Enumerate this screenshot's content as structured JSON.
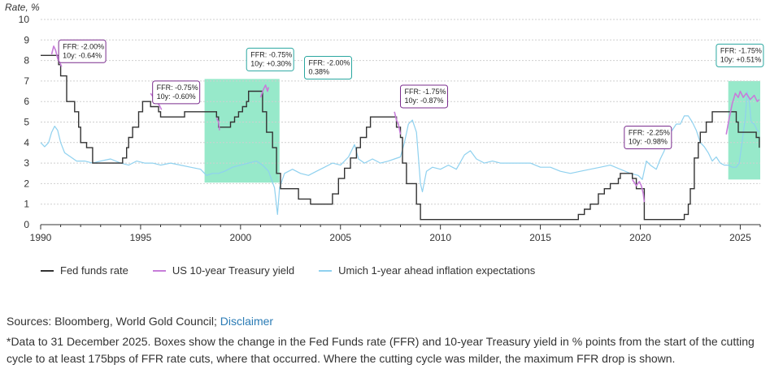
{
  "chart_data": {
    "type": "line",
    "ylabel": "Rate, %",
    "xlim": [
      1990,
      2026
    ],
    "ylim": [
      0,
      10
    ],
    "x_ticks": [
      1990,
      1995,
      2000,
      2005,
      2010,
      2015,
      2020,
      2025
    ],
    "x_tick_labels": [
      "1990",
      "1995",
      "2000",
      "2005",
      "2010",
      "2015",
      "2020",
      "2025"
    ],
    "y_ticks": [
      0,
      1,
      2,
      3,
      4,
      5,
      6,
      7,
      8,
      9,
      10
    ],
    "y_tick_labels": [
      "0",
      "1",
      "2",
      "3",
      "4",
      "5",
      "6",
      "7",
      "8",
      "9",
      "10"
    ],
    "grid": "horizontal dotted",
    "legend_position": "bottom",
    "series": [
      {
        "name": "Fed funds rate",
        "color": "#333333",
        "points": [
          [
            1990.0,
            8.25
          ],
          [
            1990.6,
            8.25
          ],
          [
            1990.9,
            7.8
          ],
          [
            1991.0,
            7.25
          ],
          [
            1991.3,
            6.0
          ],
          [
            1991.7,
            5.5
          ],
          [
            1991.9,
            4.75
          ],
          [
            1992.0,
            4.0
          ],
          [
            1992.3,
            3.75
          ],
          [
            1992.6,
            3.0
          ],
          [
            1993.0,
            3.0
          ],
          [
            1994.0,
            3.0
          ],
          [
            1994.1,
            3.25
          ],
          [
            1994.3,
            3.75
          ],
          [
            1994.4,
            4.25
          ],
          [
            1994.6,
            4.75
          ],
          [
            1994.9,
            5.5
          ],
          [
            1995.1,
            6.0
          ],
          [
            1995.5,
            5.75
          ],
          [
            1995.9,
            5.5
          ],
          [
            1996.0,
            5.25
          ],
          [
            1997.2,
            5.5
          ],
          [
            1998.7,
            5.5
          ],
          [
            1998.8,
            5.25
          ],
          [
            1998.9,
            4.75
          ],
          [
            1999.5,
            5.0
          ],
          [
            1999.7,
            5.25
          ],
          [
            1999.9,
            5.5
          ],
          [
            2000.1,
            5.75
          ],
          [
            2000.3,
            6.0
          ],
          [
            2000.4,
            6.5
          ],
          [
            2001.0,
            6.5
          ],
          [
            2001.1,
            5.5
          ],
          [
            2001.3,
            4.5
          ],
          [
            2001.6,
            3.75
          ],
          [
            2001.8,
            2.5
          ],
          [
            2002.0,
            1.75
          ],
          [
            2002.9,
            1.25
          ],
          [
            2003.5,
            1.0
          ],
          [
            2004.4,
            1.0
          ],
          [
            2004.6,
            1.5
          ],
          [
            2004.9,
            2.25
          ],
          [
            2005.2,
            2.75
          ],
          [
            2005.5,
            3.25
          ],
          [
            2005.8,
            3.75
          ],
          [
            2006.0,
            4.25
          ],
          [
            2006.3,
            4.75
          ],
          [
            2006.5,
            5.25
          ],
          [
            2007.6,
            5.25
          ],
          [
            2007.8,
            4.75
          ],
          [
            2008.0,
            4.25
          ],
          [
            2008.1,
            3.0
          ],
          [
            2008.3,
            2.0
          ],
          [
            2008.8,
            1.0
          ],
          [
            2009.0,
            0.25
          ],
          [
            2015.9,
            0.25
          ],
          [
            2016.9,
            0.5
          ],
          [
            2017.2,
            0.75
          ],
          [
            2017.5,
            1.0
          ],
          [
            2017.9,
            1.5
          ],
          [
            2018.2,
            1.75
          ],
          [
            2018.5,
            2.0
          ],
          [
            2018.9,
            2.25
          ],
          [
            2019.0,
            2.5
          ],
          [
            2019.5,
            2.5
          ],
          [
            2019.6,
            2.25
          ],
          [
            2019.8,
            1.75
          ],
          [
            2020.1,
            1.75
          ],
          [
            2020.2,
            0.25
          ],
          [
            2022.0,
            0.25
          ],
          [
            2022.2,
            0.5
          ],
          [
            2022.4,
            1.0
          ],
          [
            2022.5,
            1.75
          ],
          [
            2022.7,
            3.25
          ],
          [
            2022.9,
            4.0
          ],
          [
            2023.0,
            4.5
          ],
          [
            2023.3,
            5.0
          ],
          [
            2023.6,
            5.5
          ],
          [
            2024.7,
            5.5
          ],
          [
            2024.8,
            5.0
          ],
          [
            2024.9,
            4.5
          ],
          [
            2025.7,
            4.5
          ],
          [
            2025.8,
            4.25
          ],
          [
            2025.95,
            3.75
          ]
        ]
      },
      {
        "name": "US 10-year Treasury yield",
        "color": "#c77dd9",
        "segments": [
          [
            [
              1990.55,
              8.3
            ],
            [
              1990.65,
              8.7
            ],
            [
              1990.75,
              8.5
            ],
            [
              1990.85,
              8.1
            ],
            [
              1990.95,
              7.9
            ],
            [
              1991.05,
              7.7
            ]
          ],
          [
            [
              1995.5,
              6.4
            ],
            [
              1995.65,
              6.2
            ],
            [
              1995.8,
              6.0
            ],
            [
              1995.95,
              5.8
            ],
            [
              1996.05,
              5.6
            ]
          ],
          [
            [
              1998.8,
              5.2
            ],
            [
              1998.9,
              5.0
            ],
            [
              1998.95,
              4.6
            ]
          ],
          [
            [
              2001.0,
              6.2
            ],
            [
              2001.15,
              6.6
            ],
            [
              2001.25,
              6.8
            ],
            [
              2001.35,
              6.5
            ],
            [
              2001.4,
              6.7
            ]
          ],
          [
            [
              2007.7,
              5.5
            ],
            [
              2007.8,
              5.1
            ],
            [
              2007.9,
              4.9
            ],
            [
              2008.0,
              4.4
            ]
          ],
          [
            [
              2019.6,
              2.2
            ],
            [
              2019.8,
              1.9
            ],
            [
              2019.95,
              2.1
            ],
            [
              2020.05,
              1.9
            ],
            [
              2020.15,
              1.5
            ],
            [
              2020.2,
              1.1
            ]
          ],
          [
            [
              2024.3,
              4.4
            ],
            [
              2024.45,
              5.2
            ],
            [
              2024.6,
              5.9
            ],
            [
              2024.75,
              6.4
            ],
            [
              2024.9,
              6.2
            ],
            [
              2025.0,
              6.5
            ],
            [
              2025.15,
              6.2
            ],
            [
              2025.3,
              6.4
            ],
            [
              2025.5,
              6.1
            ],
            [
              2025.7,
              6.3
            ],
            [
              2025.85,
              6.0
            ],
            [
              2025.95,
              6.1
            ]
          ]
        ]
      },
      {
        "name": "Umich 1-year ahead inflation expectations",
        "color": "#8fd1ef",
        "points": [
          [
            1990.0,
            4.0
          ],
          [
            1990.2,
            3.8
          ],
          [
            1990.4,
            4.0
          ],
          [
            1990.55,
            4.5
          ],
          [
            1990.7,
            4.8
          ],
          [
            1990.85,
            4.6
          ],
          [
            1991.0,
            4.0
          ],
          [
            1991.2,
            3.5
          ],
          [
            1991.5,
            3.3
          ],
          [
            1991.8,
            3.1
          ],
          [
            1992.2,
            3.1
          ],
          [
            1992.6,
            3.0
          ],
          [
            1993.0,
            3.1
          ],
          [
            1993.5,
            3.2
          ],
          [
            1994.0,
            3.0
          ],
          [
            1994.4,
            2.9
          ],
          [
            1994.8,
            3.1
          ],
          [
            1995.2,
            3.0
          ],
          [
            1995.6,
            3.0
          ],
          [
            1996.0,
            2.9
          ],
          [
            1996.5,
            3.0
          ],
          [
            1997.0,
            2.9
          ],
          [
            1997.5,
            2.8
          ],
          [
            1998.0,
            2.7
          ],
          [
            1998.3,
            2.4
          ],
          [
            1998.6,
            2.5
          ],
          [
            1998.9,
            2.5
          ],
          [
            1999.2,
            2.6
          ],
          [
            1999.6,
            2.8
          ],
          [
            2000.0,
            2.9
          ],
          [
            2000.4,
            3.0
          ],
          [
            2000.8,
            3.1
          ],
          [
            2001.1,
            2.9
          ],
          [
            2001.4,
            2.6
          ],
          [
            2001.7,
            1.8
          ],
          [
            2001.85,
            0.5
          ],
          [
            2001.95,
            1.8
          ],
          [
            2002.2,
            2.5
          ],
          [
            2002.6,
            2.7
          ],
          [
            2003.0,
            2.5
          ],
          [
            2003.4,
            2.4
          ],
          [
            2003.8,
            2.6
          ],
          [
            2004.2,
            2.8
          ],
          [
            2004.6,
            3.0
          ],
          [
            2005.0,
            2.9
          ],
          [
            2005.4,
            3.3
          ],
          [
            2005.7,
            3.9
          ],
          [
            2005.9,
            3.2
          ],
          [
            2006.2,
            3.0
          ],
          [
            2006.6,
            3.2
          ],
          [
            2007.0,
            3.0
          ],
          [
            2007.4,
            3.1
          ],
          [
            2007.7,
            3.2
          ],
          [
            2008.0,
            3.3
          ],
          [
            2008.2,
            4.0
          ],
          [
            2008.4,
            4.9
          ],
          [
            2008.6,
            5.1
          ],
          [
            2008.8,
            4.5
          ],
          [
            2009.0,
            2.0
          ],
          [
            2009.1,
            1.6
          ],
          [
            2009.3,
            2.6
          ],
          [
            2009.6,
            2.8
          ],
          [
            2010.0,
            2.7
          ],
          [
            2010.4,
            2.9
          ],
          [
            2010.8,
            2.7
          ],
          [
            2011.2,
            3.4
          ],
          [
            2011.5,
            3.6
          ],
          [
            2011.8,
            3.2
          ],
          [
            2012.2,
            3.0
          ],
          [
            2012.6,
            3.1
          ],
          [
            2013.0,
            3.0
          ],
          [
            2013.5,
            3.0
          ],
          [
            2014.0,
            3.0
          ],
          [
            2014.5,
            3.0
          ],
          [
            2015.0,
            2.8
          ],
          [
            2015.5,
            2.8
          ],
          [
            2016.0,
            2.6
          ],
          [
            2016.5,
            2.5
          ],
          [
            2017.0,
            2.6
          ],
          [
            2017.5,
            2.7
          ],
          [
            2018.0,
            2.8
          ],
          [
            2018.5,
            2.9
          ],
          [
            2019.0,
            2.7
          ],
          [
            2019.5,
            2.5
          ],
          [
            2019.9,
            2.4
          ],
          [
            2020.1,
            2.2
          ],
          [
            2020.3,
            3.1
          ],
          [
            2020.5,
            2.9
          ],
          [
            2020.8,
            2.7
          ],
          [
            2021.0,
            3.2
          ],
          [
            2021.2,
            3.6
          ],
          [
            2021.4,
            4.4
          ],
          [
            2021.6,
            4.6
          ],
          [
            2021.8,
            4.9
          ],
          [
            2022.0,
            4.9
          ],
          [
            2022.2,
            5.3
          ],
          [
            2022.4,
            5.3
          ],
          [
            2022.6,
            5.0
          ],
          [
            2022.8,
            4.6
          ],
          [
            2023.0,
            4.0
          ],
          [
            2023.2,
            3.8
          ],
          [
            2023.4,
            3.5
          ],
          [
            2023.6,
            3.1
          ],
          [
            2023.8,
            3.3
          ],
          [
            2024.0,
            3.0
          ],
          [
            2024.2,
            2.9
          ],
          [
            2024.4,
            2.9
          ],
          [
            2024.6,
            2.8
          ],
          [
            2024.8,
            2.8
          ],
          [
            2024.95,
            3.0
          ],
          [
            2025.1,
            4.1
          ],
          [
            2025.25,
            5.2
          ],
          [
            2025.35,
            6.5
          ],
          [
            2025.45,
            6.0
          ],
          [
            2025.55,
            5.0
          ],
          [
            2025.7,
            4.9
          ],
          [
            2025.85,
            4.6
          ],
          [
            2025.95,
            4.5
          ]
        ]
      }
    ],
    "shaded_regions": [
      {
        "x": [
          1998.2,
          2001.95
        ],
        "y": [
          2.05,
          7.1
        ]
      },
      {
        "x": [
          2024.4,
          2026.0
        ],
        "y": [
          2.2,
          7.0
        ]
      }
    ],
    "annotations": [
      {
        "lines": [
          "FFR: -2.00%",
          "10y: -0.64%"
        ],
        "style": "purple",
        "at": [
          1990.9,
          9.0
        ]
      },
      {
        "lines": [
          "FFR: -0.75%",
          "10y: -0.60%"
        ],
        "style": "purple",
        "at": [
          1995.6,
          7.0
        ]
      },
      {
        "lines": [
          "FFR: -0.75%",
          "10y: +0.30%"
        ],
        "style": "teal",
        "at": [
          2000.3,
          8.6
        ]
      },
      {
        "lines": [
          "FFR: -2.00%",
          "0.38%"
        ],
        "style": "teal",
        "at": [
          2003.2,
          8.2
        ]
      },
      {
        "lines": [
          "FFR: -1.75%",
          "10y: -0.87%"
        ],
        "style": "purple",
        "at": [
          2008.0,
          6.8
        ]
      },
      {
        "lines": [
          "FFR: -2.25%",
          "10y: -0.98%"
        ],
        "style": "purple",
        "at": [
          2019.2,
          4.8
        ]
      },
      {
        "lines": [
          "FFR: -1.75%",
          "10y: +0.51%"
        ],
        "style": "teal",
        "at": [
          2023.8,
          8.8
        ]
      }
    ]
  },
  "legend": [
    {
      "label": "Fed funds rate",
      "color": "#333333"
    },
    {
      "label": "US 10-year Treasury yield",
      "color": "#c77dd9"
    },
    {
      "label": "Umich 1-year ahead inflation expectations",
      "color": "#8fd1ef"
    }
  ],
  "footer": {
    "sources_prefix": "Sources: Bloomberg, World Gold Council; ",
    "disclaimer_link": "Disclaimer",
    "note": "*Data to 31 December 2025. Boxes show the change in the Fed Funds rate (FFR) and 10-year Treasury yield in % points from the start of the cutting cycle to at least 175bps of FFR rate cuts, where that occurred. Where the cutting cycle was milder, the maximum FFR drop is shown."
  },
  "colors": {
    "shade": "#6fe0b5",
    "annotation_purple_border": "#7b2d8e",
    "annotation_teal_border": "#2aa7a0",
    "axis": "#333333",
    "grid": "#cfcfcf"
  }
}
